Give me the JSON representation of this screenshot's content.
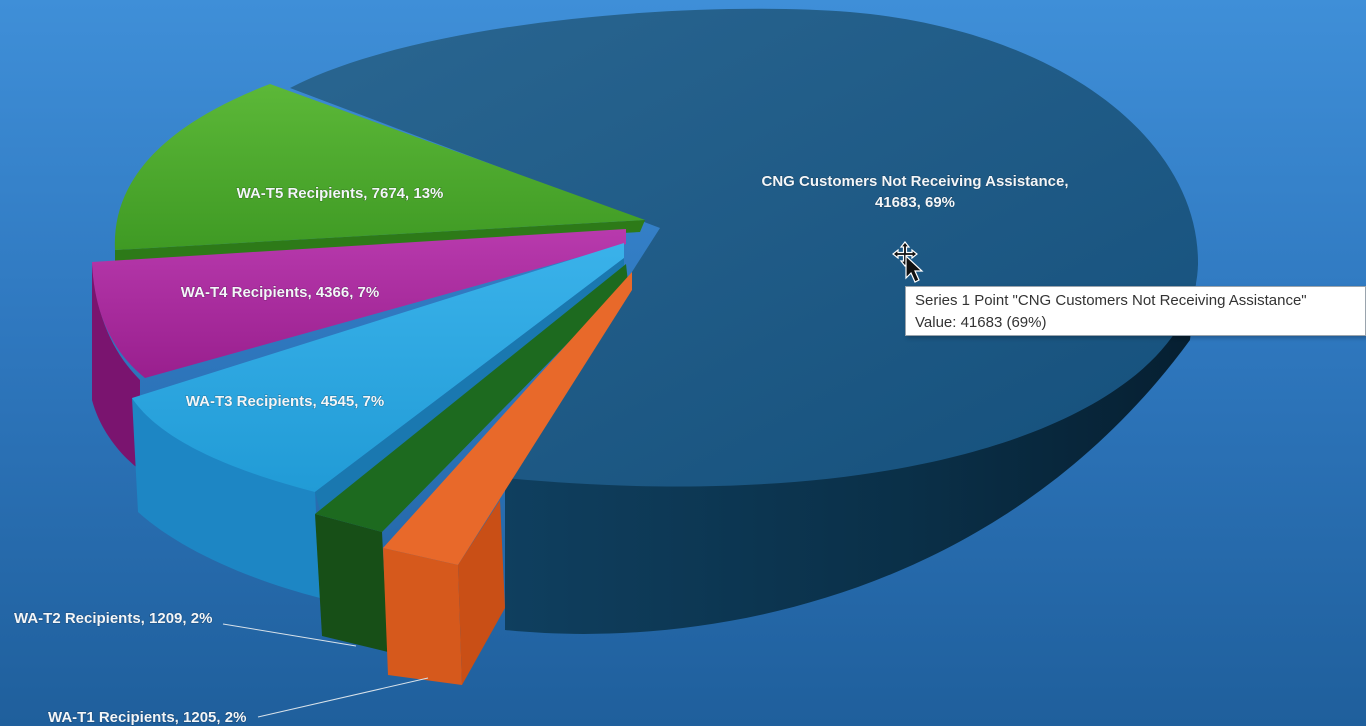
{
  "chart_data": {
    "type": "pie",
    "title": "",
    "series": [
      {
        "name": "Series 1",
        "slices": [
          {
            "label": "CNG Customers Not Receiving Assistance",
            "value": 41683,
            "percent": "69%",
            "color": "#134c73"
          },
          {
            "label": "WA-T1 Recipients",
            "value": 1205,
            "percent": "2%",
            "color": "#e8692a"
          },
          {
            "label": "WA-T2 Recipients",
            "value": 1209,
            "percent": "2%",
            "color": "#1d6a1f"
          },
          {
            "label": "WA-T3 Recipients",
            "value": 4545,
            "percent": "7%",
            "color": "#2ea7e0"
          },
          {
            "label": "WA-T4 Recipients",
            "value": 4366,
            "percent": "7%",
            "color": "#a8289c"
          },
          {
            "label": "WA-T5 Recipients",
            "value": 7674,
            "percent": "13%",
            "color": "#4aa62c"
          }
        ]
      }
    ],
    "data_labels": {
      "cng_line1": "CNG Customers Not Receiving Assistance,",
      "cng_line2": "41683, 69%",
      "t5": "WA-T5 Recipients, 7674, 13%",
      "t4": "WA-T4 Recipients, 4366, 7%",
      "t3": "WA-T3 Recipients, 4545, 7%",
      "t2": "WA-T2 Recipients, 1209, 2%",
      "t1": "WA-T1 Recipients, 1205, 2%"
    },
    "legend": "none",
    "style": "3d-exploded-pie"
  },
  "tooltip": {
    "line1": "Series 1 Point \"CNG Customers Not Receiving Assistance\"",
    "line2": "Value: 41683 (69%)"
  },
  "cursor_icon": "move-cursor-icon"
}
